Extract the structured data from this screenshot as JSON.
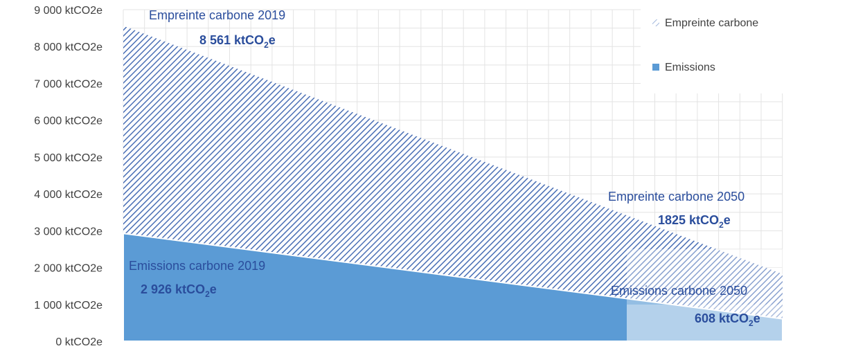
{
  "chart_data": {
    "type": "area",
    "x": [
      "2019",
      "2050"
    ],
    "series": [
      {
        "name": "Empreinte carbone",
        "values": [
          8561,
          1825
        ],
        "color": "#4a6fb5",
        "fill": "hatched"
      },
      {
        "name": "Emissions",
        "values": [
          2926,
          608
        ],
        "color": "#5b9bd5",
        "fill": "solid"
      }
    ],
    "ylim": [
      0,
      9000
    ],
    "yticks": [
      {
        "value": 0,
        "label": "0 ktCO2e"
      },
      {
        "value": 1000,
        "label": "1 000 ktCO2e"
      },
      {
        "value": 2000,
        "label": "2 000 ktCO2e"
      },
      {
        "value": 3000,
        "label": "3 000 ktCO2e"
      },
      {
        "value": 4000,
        "label": "4 000 ktCO2e"
      },
      {
        "value": 5000,
        "label": "5 000 ktCO2e"
      },
      {
        "value": 6000,
        "label": "6 000 ktCO2e"
      },
      {
        "value": 7000,
        "label": "7 000 ktCO2e"
      },
      {
        "value": 8000,
        "label": "8 000 ktCO2e"
      },
      {
        "value": 9000,
        "label": "9 000 ktCO2e"
      }
    ],
    "grid": true,
    "legend": {
      "position": "top-right",
      "entries": [
        "Empreinte carbone",
        "Emissions"
      ]
    },
    "annotations": {
      "footprint_2019": {
        "label": "Empreinte  carbone 2019",
        "value": "8 561 ktCO",
        "sub": "2",
        "unit_end": "e"
      },
      "emissions_2019": {
        "label": "Emissions  carbone  2019",
        "value": "2 926 ktCO",
        "sub": "2",
        "unit_end": "e"
      },
      "footprint_2050": {
        "label": "Empreinte  carbone 2050",
        "value": "1825  ktCO",
        "sub": "2",
        "unit_end": "e"
      },
      "emissions_2050": {
        "label": "Emissions  carbone  2050",
        "value": "608 ktCO",
        "sub": "2",
        "unit_end": "e"
      }
    }
  }
}
